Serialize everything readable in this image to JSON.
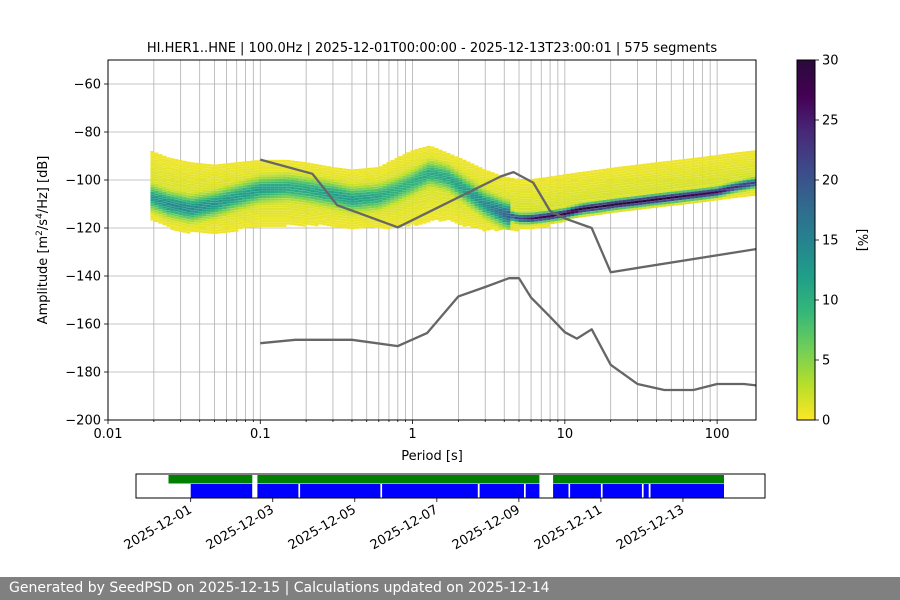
{
  "footer": {
    "text": "Generated by SeedPSD on 2025-12-15 | Calculations updated on 2025-12-14"
  },
  "chart_data": [
    {
      "type": "heatmap",
      "title": "HI.HER1..HNE | 100.0Hz | 2025-12-01T00:00:00 - 2025-12-13T23:00:01 | 575 segments",
      "xlabel": "Period [s]",
      "ylabel": "Amplitude [m²/s⁴/Hz] [dB]",
      "xscale": "log",
      "xlim": [
        0.01,
        180
      ],
      "ylim": [
        -200,
        -50
      ],
      "xticks": [
        {
          "value": 0.01,
          "label": "0.01"
        },
        {
          "value": 0.1,
          "label": "0.1"
        },
        {
          "value": 1,
          "label": "1"
        },
        {
          "value": 10,
          "label": "10"
        },
        {
          "value": 100,
          "label": "100"
        }
      ],
      "yticks": [
        -60,
        -80,
        -100,
        -120,
        -140,
        -160,
        -180,
        -200
      ],
      "grid": true,
      "colorbar": {
        "label": "[%]",
        "range": [
          0,
          30
        ],
        "ticks": [
          0,
          5,
          10,
          15,
          20,
          25,
          30
        ],
        "colormap": "viridis_r"
      },
      "density": {
        "comment_free": true,
        "x": [
          0.019,
          0.025,
          0.035,
          0.05,
          0.07,
          0.1,
          0.15,
          0.2,
          0.3,
          0.4,
          0.6,
          0.8,
          1.0,
          1.3,
          1.7,
          2.2,
          3.0,
          4.0,
          5.0,
          6.0,
          8.0,
          10,
          13,
          17,
          22,
          30,
          40,
          55,
          75,
          100,
          130,
          180
        ],
        "mode_db": [
          -107,
          -110,
          -112,
          -110,
          -107,
          -104,
          -103,
          -104,
          -106,
          -108,
          -107,
          -104,
          -101,
          -97,
          -99,
          -104,
          -110,
          -114,
          -116,
          -116,
          -115,
          -114,
          -112,
          -111,
          -110,
          -109,
          -108,
          -107,
          -106,
          -105,
          -103,
          -101
        ],
        "upper_db": [
          -88,
          -91,
          -93,
          -94,
          -93,
          -92,
          -92,
          -93,
          -95,
          -96,
          -95,
          -91,
          -88,
          -86,
          -89,
          -92,
          -96,
          -99,
          -100,
          -100,
          -99,
          -98,
          -97,
          -96,
          -95,
          -94,
          -93,
          -92,
          -91,
          -90,
          -89,
          -88
        ],
        "lower_db": [
          -116,
          -120,
          -122,
          -122,
          -121,
          -119,
          -119,
          -119,
          -119,
          -120,
          -120,
          -120,
          -119,
          -117,
          -117,
          -119,
          -121,
          -121,
          -121,
          -120,
          -119,
          -117,
          -115,
          -114,
          -113,
          -112,
          -111,
          -110,
          -109,
          -108,
          -107,
          -106
        ],
        "peak_percent": [
          12,
          14,
          14,
          13,
          12,
          12,
          11,
          11,
          12,
          12,
          11,
          10,
          10,
          11,
          11,
          12,
          14,
          18,
          22,
          26,
          28,
          29,
          30,
          30,
          30,
          30,
          30,
          29,
          28,
          27,
          24,
          22
        ]
      },
      "series": [
        {
          "x": [
            0.1,
            0.22,
            0.32,
            0.8,
            3.8,
            4.6,
            6.2,
            8.0,
            10,
            15,
            20,
            180
          ],
          "y": [
            -91.5,
            -97.4,
            -110.5,
            -119.7,
            -98.5,
            -96.7,
            -101.1,
            -112.9,
            -116.0,
            -120.0,
            -138.4,
            -128.8
          ]
        },
        {
          "x": [
            0.1,
            0.17,
            0.4,
            0.8,
            1.25,
            2.0,
            3.0,
            4.3,
            5.0,
            6.0,
            8.0,
            10,
            12,
            15,
            20,
            30,
            45,
            70,
            100,
            150,
            180
          ],
          "y": [
            -168.0,
            -166.6,
            -166.6,
            -169.2,
            -163.7,
            -148.5,
            -144.6,
            -140.9,
            -140.9,
            -149.0,
            -157.0,
            -163.4,
            -166.1,
            -162.2,
            -177.0,
            -185.0,
            -187.5,
            -187.5,
            -185.0,
            -185.0,
            -185.6
          ]
        }
      ]
    },
    {
      "type": "timeline",
      "x_start": "2025-11-29T16:00",
      "x_end": "2025-12-15T00:00",
      "xticks": [
        "2025-12-01",
        "2025-12-03",
        "2025-12-05",
        "2025-12-07",
        "2025-12-09",
        "2025-12-11",
        "2025-12-13"
      ],
      "tracks": [
        {
          "color": "#008000",
          "intervals": [
            [
              "2025-12-00T11:00",
              "2025-12-02T12:00"
            ],
            [
              "2025-12-02T15:00",
              "2025-12-09T12:00"
            ],
            [
              "2025-12-09T20:00",
              "2025-12-14T00:00"
            ]
          ]
        },
        {
          "color": "#0000ff",
          "intervals": [
            [
              "2025-12-01T00:00",
              "2025-12-02T12:00"
            ],
            [
              "2025-12-02T15:00",
              "2025-12-03T15:00"
            ],
            [
              "2025-12-03T16:00",
              "2025-12-05T15:00"
            ],
            [
              "2025-12-05T16:00",
              "2025-12-08T00:00"
            ],
            [
              "2025-12-08T01:00",
              "2025-12-09T03:00"
            ],
            [
              "2025-12-09T04:00",
              "2025-12-09T12:00"
            ],
            [
              "2025-12-09T20:00",
              "2025-12-10T05:00"
            ],
            [
              "2025-12-10T06:00",
              "2025-12-11T00:00"
            ],
            [
              "2025-12-11T01:00",
              "2025-12-12T00:00"
            ],
            [
              "2025-12-12T01:00",
              "2025-12-12T04:00"
            ],
            [
              "2025-12-12T05:00",
              "2025-12-14T00:00"
            ]
          ]
        }
      ]
    }
  ]
}
